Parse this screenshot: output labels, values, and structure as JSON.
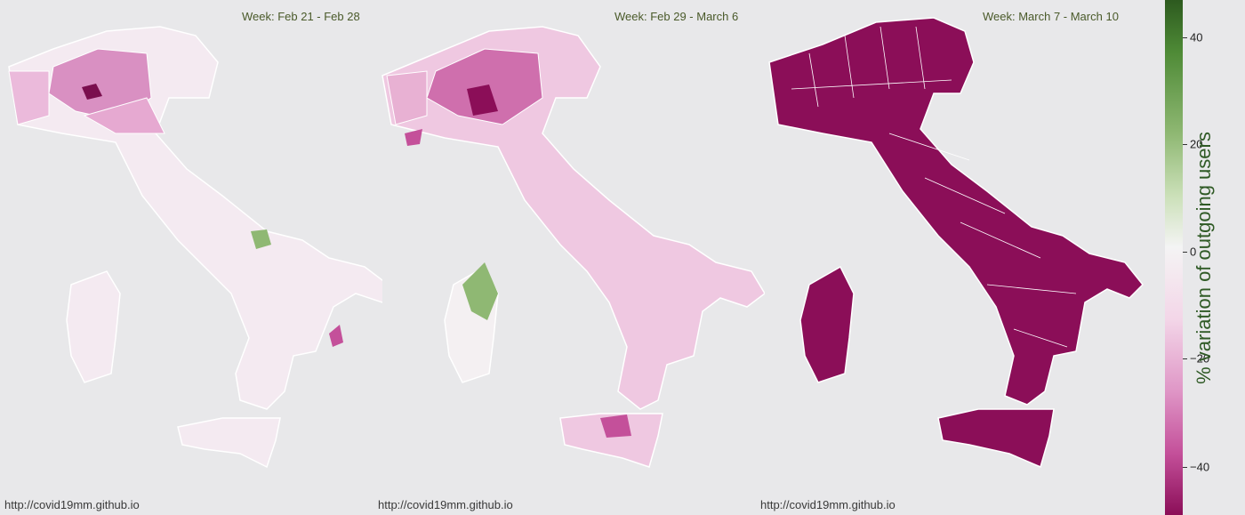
{
  "panels": [
    {
      "title": "Week: Feb 21 - Feb 28",
      "credit": "http://covid19mm.github.io"
    },
    {
      "title": "Week: Feb 29 - March 6",
      "credit": "http://covid19mm.github.io"
    },
    {
      "title": "Week: March 7 - March 10",
      "credit": "http://covid19mm.github.io"
    }
  ],
  "legend": {
    "label": "% variation of outgoing users",
    "ticks": [
      "40",
      "20",
      "0",
      "−20",
      "−40"
    ],
    "range": [
      -50,
      47
    ],
    "colors": {
      "positive": "#2d5a1f",
      "neutral": "#f4f4f4",
      "negative": "#8b0e58"
    }
  },
  "colors": {
    "background": "#e8e8ea",
    "panel3_fill": "#8b0e58",
    "light_pink": "#f3d6e8",
    "mid_pink": "#df96c6",
    "dark_pink": "#c4509a",
    "green": "#8fb873"
  }
}
